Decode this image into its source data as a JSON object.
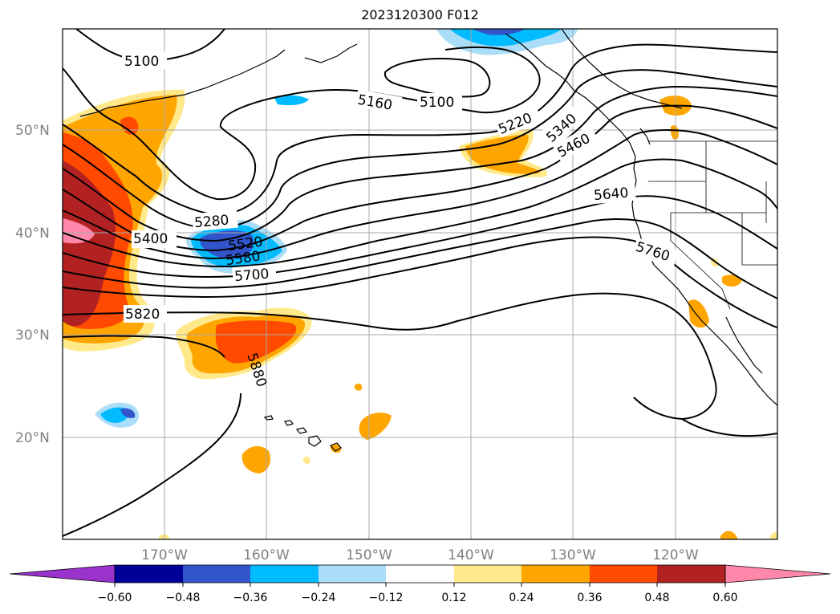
{
  "title": "2023120300 F012",
  "lat_labels": [
    "50°N",
    "40°N",
    "30°N",
    "20°N"
  ],
  "lon_labels": [
    "170°W",
    "160°W",
    "150°W",
    "140°W",
    "130°W",
    "120°W"
  ],
  "contour_labels": [
    "5100",
    "5160",
    "5100",
    "5220",
    "5340",
    "5460",
    "5640",
    "5280",
    "5400",
    "5520",
    "5580",
    "5700",
    "5760",
    "5820",
    "5880"
  ],
  "colorbar": {
    "ticks": [
      "−0.60",
      "−0.48",
      "−0.36",
      "−0.24",
      "−0.12",
      "0.12",
      "0.24",
      "0.36",
      "0.48",
      "0.60"
    ],
    "colors": [
      "#9933cc",
      "#000099",
      "#3355cc",
      "#00bbff",
      "#aaddf8",
      "#ffffff",
      "#ffe98a",
      "#ffa500",
      "#ff4a00",
      "#b22222",
      "#ff88aa"
    ]
  },
  "colors": {
    "contour": "#000000",
    "grid": "#aaaaaa"
  }
}
